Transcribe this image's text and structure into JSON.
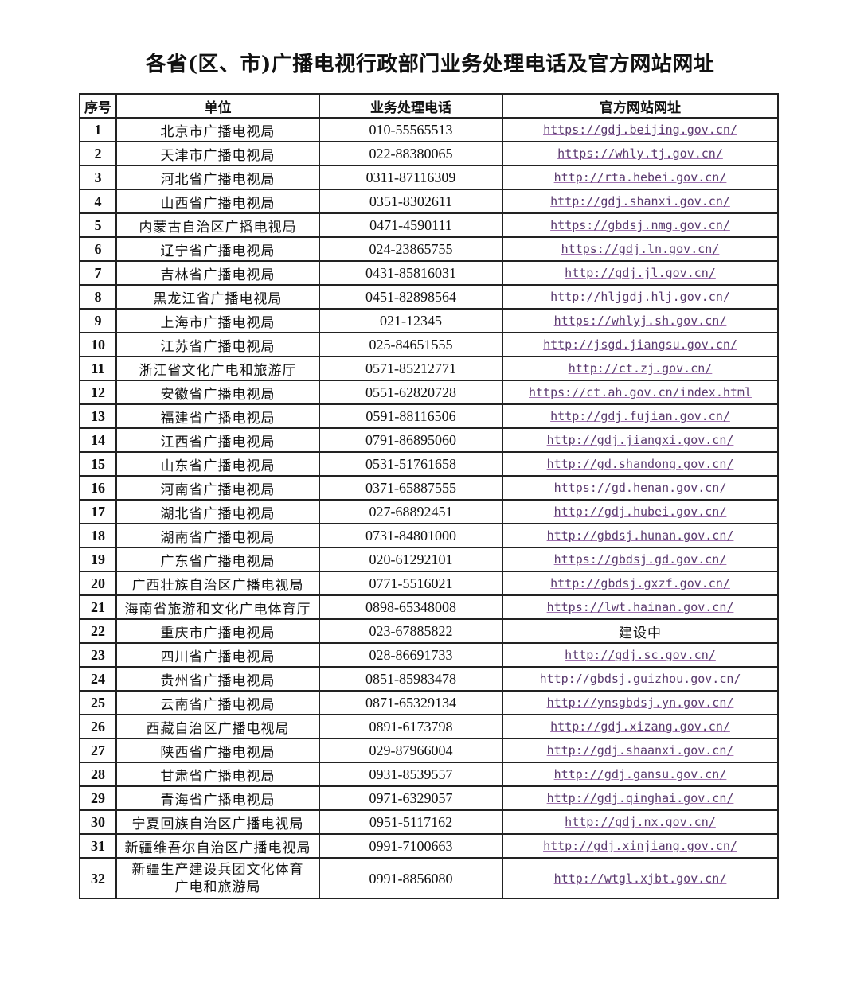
{
  "title": "各省(区、市)广播电视行政部门业务处理电话及官方网站网址",
  "headers": [
    "序号",
    "单位",
    "业务处理电话",
    "官方网站网址"
  ],
  "rows": [
    {
      "no": "1",
      "unit": "北京市广播电视局",
      "phone": "010-55565513",
      "url": "https://gdj.beijing.gov.cn/"
    },
    {
      "no": "2",
      "unit": "天津市广播电视局",
      "phone": "022-88380065",
      "url": "https://whly.tj.gov.cn/"
    },
    {
      "no": "3",
      "unit": "河北省广播电视局",
      "phone": "0311-87116309",
      "url": "http://rta.hebei.gov.cn/"
    },
    {
      "no": "4",
      "unit": "山西省广播电视局",
      "phone": "0351-8302611",
      "url": "http://gdj.shanxi.gov.cn/"
    },
    {
      "no": "5",
      "unit": "内蒙古自治区广播电视局",
      "phone": "0471-4590111",
      "url": "https://gbdsj.nmg.gov.cn/"
    },
    {
      "no": "6",
      "unit": "辽宁省广播电视局",
      "phone": "024-23865755",
      "url": "https://gdj.ln.gov.cn/"
    },
    {
      "no": "7",
      "unit": "吉林省广播电视局",
      "phone": "0431-85816031",
      "url": "http://gdj.jl.gov.cn/"
    },
    {
      "no": "8",
      "unit": "黑龙江省广播电视局",
      "phone": "0451-82898564",
      "url": "http://hljgdj.hlj.gov.cn/"
    },
    {
      "no": "9",
      "unit": "上海市广播电视局",
      "phone": "021-12345",
      "url": "https://whlyj.sh.gov.cn/"
    },
    {
      "no": "10",
      "unit": "江苏省广播电视局",
      "phone": "025-84651555",
      "url": "http://jsgd.jiangsu.gov.cn/"
    },
    {
      "no": "11",
      "unit": "浙江省文化广电和旅游厅",
      "phone": "0571-85212771",
      "url": "http://ct.zj.gov.cn/"
    },
    {
      "no": "12",
      "unit": "安徽省广播电视局",
      "phone": "0551-62820728",
      "url": "https://ct.ah.gov.cn/index.html"
    },
    {
      "no": "13",
      "unit": "福建省广播电视局",
      "phone": "0591-88116506",
      "url": "http://gdj.fujian.gov.cn/"
    },
    {
      "no": "14",
      "unit": "江西省广播电视局",
      "phone": "0791-86895060",
      "url": "http://gdj.jiangxi.gov.cn/"
    },
    {
      "no": "15",
      "unit": "山东省广播电视局",
      "phone": "0531-51761658",
      "url": "http://gd.shandong.gov.cn/"
    },
    {
      "no": "16",
      "unit": "河南省广播电视局",
      "phone": "0371-65887555",
      "url": "https://gd.henan.gov.cn/"
    },
    {
      "no": "17",
      "unit": "湖北省广播电视局",
      "phone": "027-68892451",
      "url": "http://gdj.hubei.gov.cn/"
    },
    {
      "no": "18",
      "unit": "湖南省广播电视局",
      "phone": "0731-84801000",
      "url": "http://gbdsj.hunan.gov.cn/"
    },
    {
      "no": "19",
      "unit": "广东省广播电视局",
      "phone": "020-61292101",
      "url": "https://gbdsj.gd.gov.cn/"
    },
    {
      "no": "20",
      "unit": "广西壮族自治区广播电视局",
      "phone": "0771-5516021",
      "url": "http://gbdsj.gxzf.gov.cn/"
    },
    {
      "no": "21",
      "unit": "海南省旅游和文化广电体育厅",
      "phone": "0898-65348008",
      "url": "https://lwt.hainan.gov.cn/"
    },
    {
      "no": "22",
      "unit": "重庆市广播电视局",
      "phone": "023-67885822",
      "url": "建设中",
      "plain": true
    },
    {
      "no": "23",
      "unit": "四川省广播电视局",
      "phone": "028-86691733",
      "url": "http://gdj.sc.gov.cn/"
    },
    {
      "no": "24",
      "unit": "贵州省广播电视局",
      "phone": "0851-85983478",
      "url": "http://gbdsj.guizhou.gov.cn/"
    },
    {
      "no": "25",
      "unit": "云南省广播电视局",
      "phone": "0871-65329134",
      "url": "http://ynsgbdsj.yn.gov.cn/"
    },
    {
      "no": "26",
      "unit": "西藏自治区广播电视局",
      "phone": "0891-6173798",
      "url": "http://gdj.xizang.gov.cn/"
    },
    {
      "no": "27",
      "unit": "陕西省广播电视局",
      "phone": "029-87966004",
      "url": "http://gdj.shaanxi.gov.cn/"
    },
    {
      "no": "28",
      "unit": "甘肃省广播电视局",
      "phone": "0931-8539557",
      "url": "http://gdj.gansu.gov.cn/"
    },
    {
      "no": "29",
      "unit": "青海省广播电视局",
      "phone": "0971-6329057",
      "url": "http://gdj.qinghai.gov.cn/"
    },
    {
      "no": "30",
      "unit": "宁夏回族自治区广播电视局",
      "phone": "0951-5117162",
      "url": "http://gdj.nx.gov.cn/"
    },
    {
      "no": "31",
      "unit": "新疆维吾尔自治区广播电视局",
      "phone": "0991-7100663",
      "url": "http://gdj.xinjiang.gov.cn/"
    },
    {
      "no": "32",
      "unit": "新疆生产建设兵团文化体育广电和旅游局",
      "phone": "0991-8856080",
      "url": "http://wtgl.xjbt.gov.cn/",
      "tall": true
    }
  ],
  "colors": {
    "link": "#5a3a6e",
    "border": "#222222"
  }
}
